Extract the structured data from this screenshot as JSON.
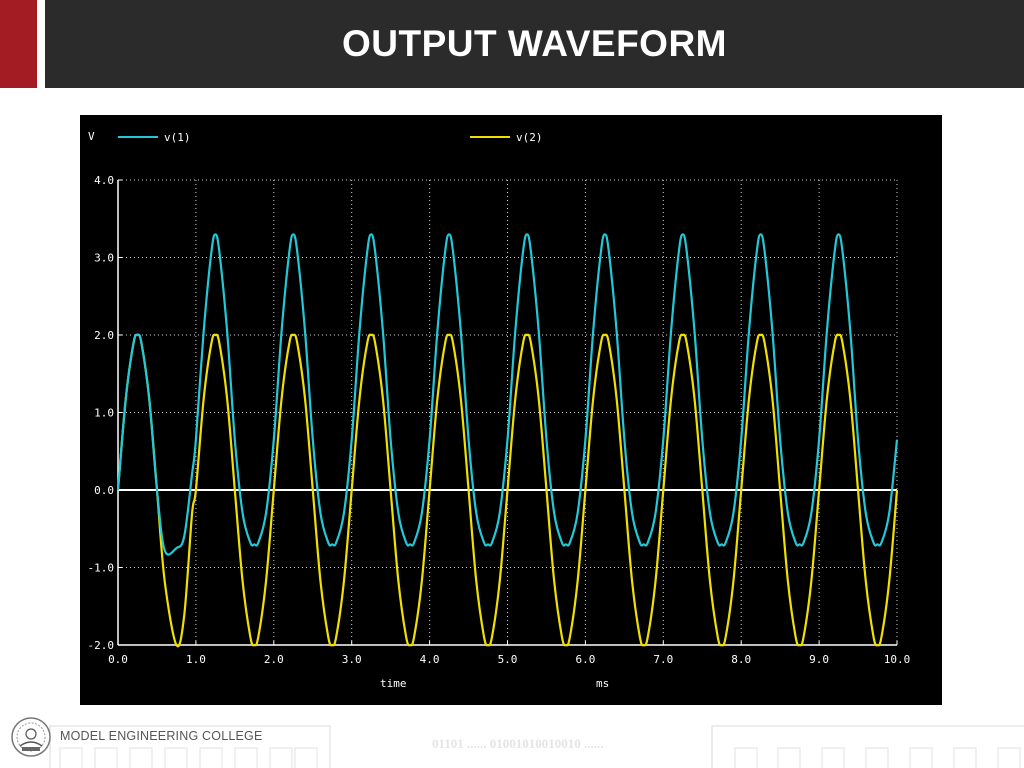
{
  "header": {
    "title": "OUTPUT WAVEFORM",
    "accent_color": "#a31c24",
    "bar_color": "#2b2b2b"
  },
  "footer": {
    "college_name": "MODEL ENGINEERING COLLEGE",
    "binary_text": "01101 ...... 01001010010010 ......"
  },
  "chart_data": {
    "type": "line",
    "ylabel": "V",
    "xlabel_left": "time",
    "xlabel_right": "ms",
    "xlim": [
      0,
      10
    ],
    "ylim": [
      -2,
      4
    ],
    "grid": true,
    "legend_placement": "top",
    "x_ticks": [
      "0.0",
      "1.0",
      "2.0",
      "3.0",
      "4.0",
      "5.0",
      "6.0",
      "7.0",
      "8.0",
      "9.0",
      "10.0"
    ],
    "y_ticks": [
      "4.0",
      "3.0",
      "2.0",
      "1.0",
      "0.0",
      "-1.0",
      "-2.0"
    ],
    "x": [
      0,
      0.1,
      0.2,
      0.25,
      0.3,
      0.4,
      0.5,
      0.6,
      0.75,
      0.85,
      0.95,
      1.0,
      1.1,
      1.2,
      1.25,
      1.3,
      1.4,
      1.5,
      1.6,
      1.7,
      1.75,
      1.8,
      1.9,
      2.0,
      2.1,
      2.2,
      2.25,
      2.3,
      2.4,
      2.5,
      2.6,
      2.7,
      2.75,
      2.8,
      2.9,
      3.0,
      3.1,
      3.2,
      3.25,
      3.3,
      3.4,
      3.5,
      3.6,
      3.7,
      3.75,
      3.8,
      3.9,
      4.0,
      4.1,
      4.2,
      4.25,
      4.3,
      4.4,
      4.5,
      4.6,
      4.7,
      4.75,
      4.8,
      4.9,
      5.0,
      5.1,
      5.2,
      5.25,
      5.3,
      5.4,
      5.5,
      5.6,
      5.7,
      5.75,
      5.8,
      5.9,
      6.0,
      6.1,
      6.2,
      6.25,
      6.3,
      6.4,
      6.5,
      6.6,
      6.7,
      6.75,
      6.8,
      6.9,
      7.0,
      7.1,
      7.2,
      7.25,
      7.3,
      7.4,
      7.5,
      7.6,
      7.7,
      7.75,
      7.8,
      7.9,
      8.0,
      8.1,
      8.2,
      8.25,
      8.3,
      8.4,
      8.5,
      8.6,
      8.7,
      8.75,
      8.8,
      8.9,
      9.0,
      9.1,
      9.2,
      9.25,
      9.3,
      9.4,
      9.5,
      9.6,
      9.7,
      9.75,
      9.8,
      9.9,
      10.0
    ],
    "series": [
      {
        "name": "v(1)",
        "color": "#22c8d8",
        "values": [
          0.0,
          1.18,
          1.9,
          2.0,
          1.9,
          1.18,
          0.0,
          -0.78,
          -0.75,
          -0.6,
          0.2,
          0.65,
          2.05,
          3.08,
          3.3,
          3.08,
          2.05,
          0.65,
          -0.3,
          -0.68,
          -0.7,
          -0.68,
          -0.3,
          0.65,
          2.05,
          3.08,
          3.3,
          3.08,
          2.05,
          0.65,
          -0.3,
          -0.68,
          -0.7,
          -0.68,
          -0.3,
          0.65,
          2.05,
          3.08,
          3.3,
          3.08,
          2.05,
          0.65,
          -0.3,
          -0.68,
          -0.7,
          -0.68,
          -0.3,
          0.65,
          2.05,
          3.08,
          3.3,
          3.08,
          2.05,
          0.65,
          -0.3,
          -0.68,
          -0.7,
          -0.68,
          -0.3,
          0.65,
          2.05,
          3.08,
          3.3,
          3.08,
          2.05,
          0.65,
          -0.3,
          -0.68,
          -0.7,
          -0.68,
          -0.3,
          0.65,
          2.05,
          3.08,
          3.3,
          3.08,
          2.05,
          0.65,
          -0.3,
          -0.68,
          -0.7,
          -0.68,
          -0.3,
          0.65,
          2.05,
          3.08,
          3.3,
          3.08,
          2.05,
          0.65,
          -0.3,
          -0.68,
          -0.7,
          -0.68,
          -0.3,
          0.65,
          2.05,
          3.08,
          3.3,
          3.08,
          2.05,
          0.65,
          -0.3,
          -0.68,
          -0.7,
          -0.68,
          -0.3,
          0.65,
          2.05,
          3.08,
          3.3,
          3.08,
          2.05,
          0.65,
          -0.3,
          -0.68,
          -0.7,
          -0.68,
          -0.3,
          0.65
        ]
      },
      {
        "name": "v(2)",
        "color": "#f0e000",
        "values": [
          0.0,
          1.18,
          1.9,
          2.0,
          1.9,
          1.18,
          0.0,
          -1.18,
          -2.0,
          -1.62,
          -0.31,
          0.0,
          1.18,
          1.9,
          2.0,
          1.9,
          1.18,
          0.0,
          -1.18,
          -1.9,
          -2.0,
          -1.9,
          -1.18,
          0.0,
          1.18,
          1.9,
          2.0,
          1.9,
          1.18,
          0.0,
          -1.18,
          -1.9,
          -2.0,
          -1.9,
          -1.18,
          0.0,
          1.18,
          1.9,
          2.0,
          1.9,
          1.18,
          0.0,
          -1.18,
          -1.9,
          -2.0,
          -1.9,
          -1.18,
          0.0,
          1.18,
          1.9,
          2.0,
          1.9,
          1.18,
          0.0,
          -1.18,
          -1.9,
          -2.0,
          -1.9,
          -1.18,
          0.0,
          1.18,
          1.9,
          2.0,
          1.9,
          1.18,
          0.0,
          -1.18,
          -1.9,
          -2.0,
          -1.9,
          -1.18,
          0.0,
          1.18,
          1.9,
          2.0,
          1.9,
          1.18,
          0.0,
          -1.18,
          -1.9,
          -2.0,
          -1.9,
          -1.18,
          0.0,
          1.18,
          1.9,
          2.0,
          1.9,
          1.18,
          0.0,
          -1.18,
          -1.9,
          -2.0,
          -1.9,
          -1.18,
          0.0,
          1.18,
          1.9,
          2.0,
          1.9,
          1.18,
          0.0,
          -1.18,
          -1.9,
          -2.0,
          -1.9,
          -1.18,
          0.0,
          1.18,
          1.9,
          2.0,
          1.9,
          1.18,
          0.0,
          -1.18,
          -1.9,
          -2.0,
          -1.9,
          -1.18,
          0.0
        ]
      }
    ]
  }
}
